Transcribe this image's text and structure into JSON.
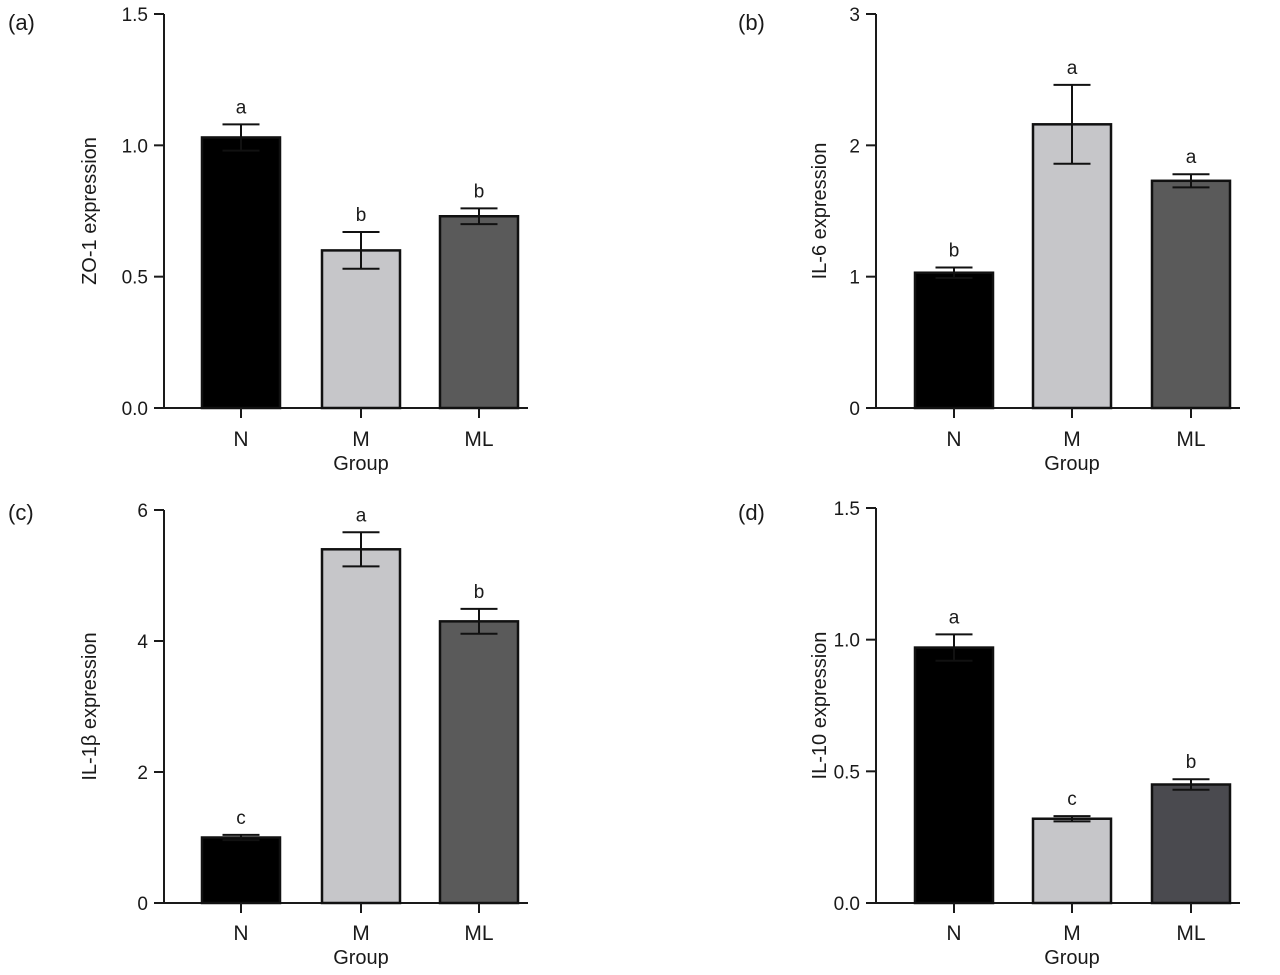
{
  "chart_data": [
    {
      "panel_label": "(a)",
      "type": "bar",
      "ylabel": "ZO-1 expression",
      "xlabel": "Group",
      "ylim": [
        0,
        1.5
      ],
      "yticks": [
        0,
        0.5,
        1.0,
        1.5
      ],
      "ytick_labels": [
        "0.0",
        "0.5",
        "1.0",
        "1.5"
      ],
      "categories": [
        "N",
        "M",
        "ML"
      ],
      "values": [
        1.03,
        0.6,
        0.73
      ],
      "errors": [
        0.05,
        0.07,
        0.03
      ],
      "significance": [
        "a",
        "b",
        "b"
      ],
      "bar_colors": [
        "#000000",
        "#c6c6c9",
        "#5a5a5a"
      ]
    },
    {
      "panel_label": "(b)",
      "type": "bar",
      "ylabel": "IL-6 expression",
      "xlabel": "Group",
      "ylim": [
        0,
        3
      ],
      "yticks": [
        0,
        1,
        2,
        3
      ],
      "ytick_labels": [
        "0",
        "1",
        "2",
        "3"
      ],
      "categories": [
        "N",
        "M",
        "ML"
      ],
      "values": [
        1.03,
        2.16,
        1.73
      ],
      "errors": [
        0.04,
        0.3,
        0.05
      ],
      "significance": [
        "b",
        "a",
        "a"
      ],
      "bar_colors": [
        "#000000",
        "#c6c6c9",
        "#5a5a5a"
      ]
    },
    {
      "panel_label": "(c)",
      "type": "bar",
      "ylabel": "IL-1β expression",
      "xlabel": "Group",
      "ylim": [
        0,
        6
      ],
      "yticks": [
        0,
        2,
        4,
        6
      ],
      "ytick_labels": [
        "0",
        "2",
        "4",
        "6"
      ],
      "categories": [
        "N",
        "M",
        "ML"
      ],
      "values": [
        1.0,
        5.4,
        4.3
      ],
      "errors": [
        0.04,
        0.26,
        0.19
      ],
      "significance": [
        "c",
        "a",
        "b"
      ],
      "bar_colors": [
        "#000000",
        "#c6c6c9",
        "#5a5a5a"
      ]
    },
    {
      "panel_label": "(d)",
      "type": "bar",
      "ylabel": "IL-10 expression",
      "xlabel": "Group",
      "ylim": [
        0,
        1.5
      ],
      "yticks": [
        0,
        0.5,
        1.0,
        1.5
      ],
      "ytick_labels": [
        "0.0",
        "0.5",
        "1.0",
        "1.5"
      ],
      "categories": [
        "N",
        "M",
        "ML"
      ],
      "values": [
        0.97,
        0.32,
        0.45
      ],
      "errors": [
        0.05,
        0.01,
        0.02
      ],
      "significance": [
        "a",
        "c",
        "b"
      ],
      "bar_colors": [
        "#000000",
        "#c6c6c9",
        "#4a4a4f"
      ]
    }
  ]
}
